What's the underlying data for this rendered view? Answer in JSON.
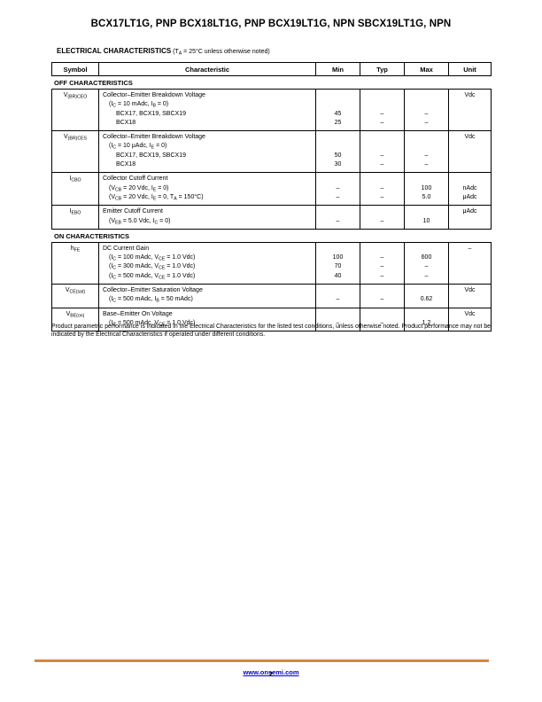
{
  "header": {
    "title": "BCX17LT1G, PNP BCX18LT1G, PNP BCX19LT1G, NPN SBCX19LT1G, NPN",
    "section_heading": "ELECTRICAL CHARACTERISTICS",
    "section_conditions": "(T~A~ = 25°C unless otherwise noted)"
  },
  "table": {
    "headers": [
      "Symbol",
      "Characteristic",
      "Min",
      "Typ",
      "Max",
      "Unit"
    ],
    "off_label": "OFF CHARACTERISTICS",
    "on_label": "ON CHARACTERISTICS",
    "rows": [
      {
        "symbol": "V~(BR)CEO~",
        "lines": [
          {
            "text": "Collector–Emitter Breakdown Voltage",
            "unit": "Vdc"
          },
          {
            "text": "(I~C~ = 10 mAdc, I~B~ = 0)"
          },
          {
            "text": "BCX17, BCX19, SBCX19",
            "min": "45",
            "typ": "–",
            "max": "–"
          },
          {
            "text": "BCX18",
            "min": "25",
            "typ": "–",
            "max": "–"
          }
        ]
      },
      {
        "symbol": "V~(BR)CES~",
        "lines": [
          {
            "text": "Collector–Emitter Breakdown Voltage",
            "unit": "Vdc"
          },
          {
            "text": "(I~C~ = 10 μAdc, I~E~ = 0)"
          },
          {
            "text": "BCX17, BCX19, SBCX19",
            "min": "50",
            "typ": "–",
            "max": "–"
          },
          {
            "text": "BCX18",
            "min": "30",
            "typ": "–",
            "max": "–"
          }
        ]
      },
      {
        "symbol": "I~CBO~",
        "lines": [
          {
            "text": "Collector Cutoff Current"
          },
          {
            "text": "(V~CB~ = 20 Vdc, I~E~ = 0)",
            "min": "–",
            "typ": "–",
            "max": "100",
            "unit": "nAdc"
          },
          {
            "text": "(V~CB~ = 20 Vdc, I~E~ = 0, T~A~ = 150°C)",
            "min": "–",
            "typ": "–",
            "max": "5.0",
            "unit": "μAdc"
          }
        ]
      },
      {
        "symbol": "I~EBO~",
        "lines": [
          {
            "text": "Emitter Cutoff Current",
            "unit": "μAdc"
          },
          {
            "text": "(V~EB~ = 5.0 Vdc, I~C~ = 0)",
            "min": "–",
            "typ": "–",
            "max": "10"
          }
        ]
      },
      {
        "symbol": "h~FE~",
        "lines": [
          {
            "text": "DC Current Gain",
            "unit": "–"
          },
          {
            "text": "(I~C~ = 100 mAdc, V~CE~ = 1.0 Vdc)",
            "min": "100",
            "typ": "–",
            "max": "600"
          },
          {
            "text": "(I~C~ = 300 mAdc, V~CE~ = 1.0 Vdc)",
            "min": "70",
            "typ": "–",
            "max": "–"
          },
          {
            "text": "(I~C~ = 500 mAdc, V~CE~ = 1.0 Vdc)",
            "min": "40",
            "typ": "–",
            "max": "–"
          }
        ]
      },
      {
        "symbol": "V~CE(sat)~",
        "lines": [
          {
            "text": "Collector–Emitter Saturation Voltage",
            "unit": "Vdc"
          },
          {
            "text": "(I~C~ = 500 mAdc, I~B~ = 50 mAdc)",
            "min": "–",
            "typ": "–",
            "max": "0.62"
          }
        ]
      },
      {
        "symbol": "V~BE(on)~",
        "lines": [
          {
            "text": "Base–Emitter On Voltage",
            "unit": "Vdc"
          },
          {
            "text": "(I~C~ = 500 mAdc, V~CE~ = 1.0 Vdc)",
            "min": "–",
            "typ": "–",
            "max": "1.2"
          }
        ]
      }
    ]
  },
  "footnote": "Product parametric performance is indicated in the Electrical Characteristics for the listed test conditions, unless otherwise noted. Product performance may not be indicated by the Electrical Characteristics if operated under different conditions.",
  "footer": {
    "link": "www.onsemi.com",
    "page_number": "2"
  },
  "colors": {
    "accent_bar": "#D8863C",
    "link_blue": "#0000D8"
  }
}
